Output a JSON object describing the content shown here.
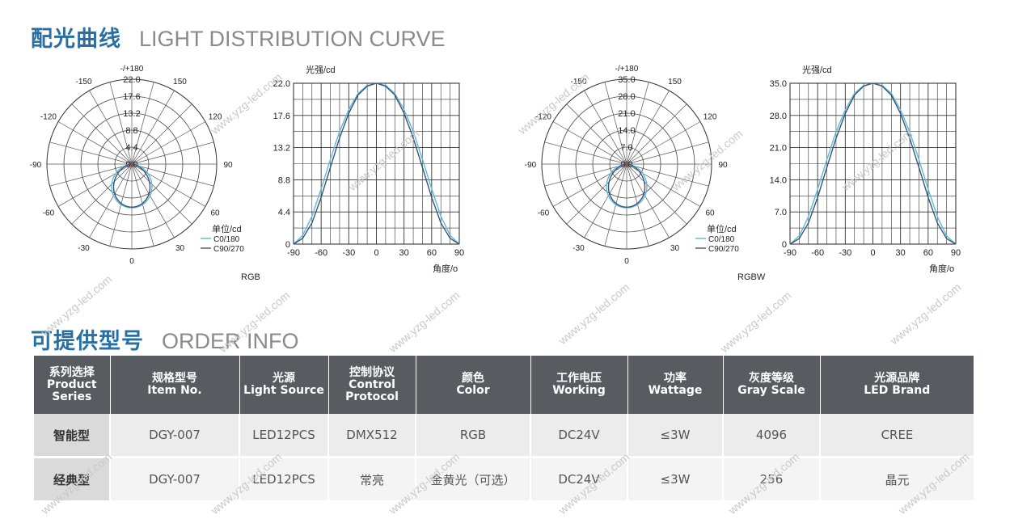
{
  "section_light": {
    "title_cn": "配光曲线",
    "title_en": "LIGHT DISTRIBUTION CURVE"
  },
  "section_order": {
    "title_cn": "可提供型号",
    "title_en": "ORDER INFO"
  },
  "watermark": "www.yzg-led.com",
  "chart_data": [
    {
      "type": "polar",
      "label": "RGB",
      "angle_labels": [
        "-/+180",
        "-150",
        "150",
        "-120",
        "120",
        "-90",
        "90",
        "-60",
        "60",
        "-30",
        "30",
        "0"
      ],
      "radial_ticks": [
        22.0,
        17.6,
        13.2,
        8.8,
        4.4,
        0.0
      ],
      "rmax": 22.0,
      "unit": "单位/cd",
      "series": [
        {
          "name": "C0/180",
          "color": "#5fb9d6",
          "profile": "wide"
        },
        {
          "name": "C90/270",
          "color": "#3a5477",
          "profile": "narrow"
        }
      ]
    },
    {
      "type": "line",
      "ylabel": "光强/cd",
      "xlabel": "角度/o",
      "xlim": [
        -90,
        90
      ],
      "ylim": [
        0,
        22.0
      ],
      "xticks": [
        -90,
        -60,
        -30,
        0,
        30,
        60,
        90
      ],
      "yticks": [
        0,
        4.4,
        8.8,
        13.2,
        17.6,
        22.0
      ],
      "series": [
        {
          "name": "C0/180",
          "color": "#5fb9d6",
          "x": [
            -90,
            -80,
            -70,
            -60,
            -50,
            -40,
            -30,
            -20,
            -10,
            0,
            10,
            20,
            30,
            40,
            50,
            60,
            70,
            80,
            90
          ],
          "y": [
            0,
            1.2,
            3.8,
            7.6,
            11.6,
            15.4,
            18.4,
            20.6,
            21.7,
            22.0,
            21.7,
            20.6,
            18.4,
            15.4,
            11.6,
            7.6,
            3.8,
            1.2,
            0
          ]
        },
        {
          "name": "C90/270",
          "color": "#3a5477",
          "x": [
            -90,
            -80,
            -70,
            -60,
            -50,
            -40,
            -30,
            -20,
            -10,
            0,
            10,
            20,
            30,
            40,
            50,
            60,
            70,
            80,
            90
          ],
          "y": [
            0,
            0.8,
            2.9,
            6.4,
            10.5,
            14.5,
            17.9,
            20.4,
            21.6,
            22.0,
            21.6,
            20.4,
            17.9,
            14.5,
            10.5,
            6.4,
            2.9,
            0.8,
            0
          ]
        }
      ]
    },
    {
      "type": "polar",
      "label": "RGBW",
      "angle_labels": [
        "-/+180",
        "-150",
        "150",
        "-120",
        "120",
        "-90",
        "90",
        "-60",
        "60",
        "-30",
        "30",
        "0"
      ],
      "radial_ticks": [
        35.0,
        28.0,
        21.0,
        14.0,
        7.0,
        0.0
      ],
      "rmax": 35.0,
      "unit": "单位/cd",
      "series": [
        {
          "name": "C0/180",
          "color": "#5fb9d6",
          "profile": "wide"
        },
        {
          "name": "C90/270",
          "color": "#3a5477",
          "profile": "narrow"
        }
      ]
    },
    {
      "type": "line",
      "ylabel": "光强/cd",
      "xlabel": "角度/o",
      "xlim": [
        -90,
        90
      ],
      "ylim": [
        0,
        35.0
      ],
      "xticks": [
        -90,
        -60,
        -30,
        0,
        30,
        60,
        90
      ],
      "yticks": [
        0,
        7.0,
        14.0,
        21.0,
        28.0,
        35.0
      ],
      "series": [
        {
          "name": "C0/180",
          "color": "#5fb9d6",
          "x": [
            -90,
            -80,
            -70,
            -60,
            -50,
            -40,
            -30,
            -20,
            -10,
            0,
            10,
            20,
            30,
            40,
            50,
            60,
            70,
            80,
            90
          ],
          "y": [
            0,
            1.8,
            6.0,
            12.0,
            18.4,
            24.4,
            29.2,
            32.8,
            34.5,
            35.0,
            34.5,
            32.8,
            29.2,
            24.4,
            18.4,
            12.0,
            6.0,
            1.8,
            0
          ]
        },
        {
          "name": "C90/270",
          "color": "#3a5477",
          "x": [
            -90,
            -80,
            -70,
            -60,
            -50,
            -40,
            -30,
            -20,
            -10,
            0,
            10,
            20,
            30,
            40,
            50,
            60,
            70,
            80,
            90
          ],
          "y": [
            0,
            1.2,
            4.6,
            10.2,
            16.7,
            23.0,
            28.4,
            32.4,
            34.4,
            35.0,
            34.4,
            32.4,
            28.4,
            23.0,
            16.7,
            10.2,
            4.6,
            1.2,
            0
          ]
        }
      ]
    }
  ],
  "table": {
    "headers": [
      {
        "cn": "系列选择",
        "en": "Product Series"
      },
      {
        "cn": "规格型号",
        "en": "Item No."
      },
      {
        "cn": "光源",
        "en": "Light Source"
      },
      {
        "cn": "控制协议",
        "en": "Control Protocol"
      },
      {
        "cn": "颜色",
        "en": "Color"
      },
      {
        "cn": "工作电压",
        "en": "Working"
      },
      {
        "cn": "功率",
        "en": "Wattage"
      },
      {
        "cn": "灰度等级",
        "en": "Gray Scale"
      },
      {
        "cn": "光源品牌",
        "en": "LED Brand"
      }
    ],
    "rows": [
      [
        "智能型",
        "DGY-007",
        "LED12PCS",
        "DMX512",
        "RGB",
        "DC24V",
        "≤3W",
        "4096",
        "CREE"
      ],
      [
        "经典型",
        "DGY-007",
        "LED12PCS",
        "常亮",
        "金黄光（可选）",
        "DC24V",
        "≤3W",
        "256",
        "晶元"
      ]
    ]
  }
}
